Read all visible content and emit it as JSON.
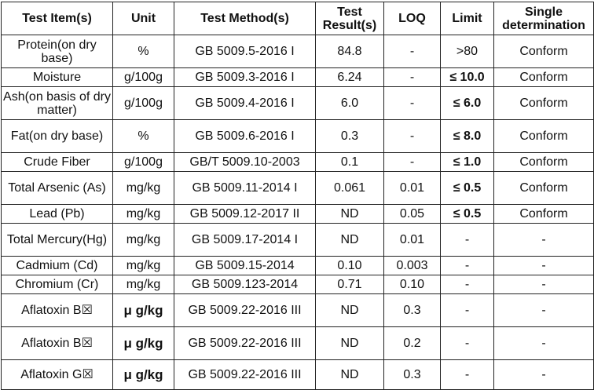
{
  "headers": [
    "Test Item(s)",
    "Unit",
    "Test Method(s)",
    "Test Result(s)",
    "LOQ",
    "Limit",
    "Single determination"
  ],
  "rows": [
    {
      "item": "Protein(on dry base)",
      "unit": "%",
      "method": "GB 5009.5-2016 I",
      "result": "84.8",
      "loq": "-",
      "limit": ">80",
      "determination": "Conform"
    },
    {
      "item": "Moisture",
      "unit": "g/100g",
      "method": "GB 5009.3-2016 I",
      "result": "6.24",
      "loq": "-",
      "limit": "≤ 10.0",
      "determination": "Conform"
    },
    {
      "item": "Ash(on basis of dry matter)",
      "unit": "g/100g",
      "method": "GB 5009.4-2016 I",
      "result": "6.0",
      "loq": "-",
      "limit": "≤ 6.0",
      "determination": "Conform"
    },
    {
      "item": "Fat(on dry base)",
      "unit": "%",
      "method": "GB 5009.6-2016 I",
      "result": "0.3",
      "loq": "-",
      "limit": "≤ 8.0",
      "determination": "Conform"
    },
    {
      "item": "Crude Fiber",
      "unit": "g/100g",
      "method": "GB/T 5009.10-2003",
      "result": "0.1",
      "loq": "-",
      "limit": "≤ 1.0",
      "determination": "Conform"
    },
    {
      "item": "Total Arsenic (As)",
      "unit": "mg/kg",
      "method": "GB 5009.11-2014 I",
      "result": "0.061",
      "loq": "0.01",
      "limit": "≤ 0.5",
      "determination": "Conform"
    },
    {
      "item": "Lead (Pb)",
      "unit": "mg/kg",
      "method": "GB 5009.12-2017 II",
      "result": "ND",
      "loq": "0.05",
      "limit": "≤ 0.5",
      "determination": "Conform"
    },
    {
      "item": "Total Mercury(Hg)",
      "unit": "mg/kg",
      "method": "GB 5009.17-2014 I",
      "result": "ND",
      "loq": "0.01",
      "limit": "-",
      "determination": "-"
    },
    {
      "item": "Cadmium (Cd)",
      "unit": "mg/kg",
      "method": "GB 5009.15-2014",
      "result": "0.10",
      "loq": "0.003",
      "limit": "-",
      "determination": "-"
    },
    {
      "item": "Chromium (Cr)",
      "unit": "mg/kg",
      "method": "GB 5009.123-2014",
      "result": "0.71",
      "loq": "0.10",
      "limit": "-",
      "determination": "-"
    },
    {
      "item": "Aflatoxin B☒",
      "unit": "μ g/kg",
      "method": "GB 5009.22-2016 III",
      "result": "ND",
      "loq": "0.3",
      "limit": "-",
      "determination": "-"
    },
    {
      "item": "Aflatoxin B☒",
      "unit": "μ g/kg",
      "method": "GB 5009.22-2016 III",
      "result": "ND",
      "loq": "0.2",
      "limit": "-",
      "determination": "-"
    },
    {
      "item": "Aflatoxin G☒",
      "unit": "μ g/kg",
      "method": "GB 5009.22-2016 III",
      "result": "ND",
      "loq": "0.3",
      "limit": "-",
      "determination": "-"
    }
  ]
}
